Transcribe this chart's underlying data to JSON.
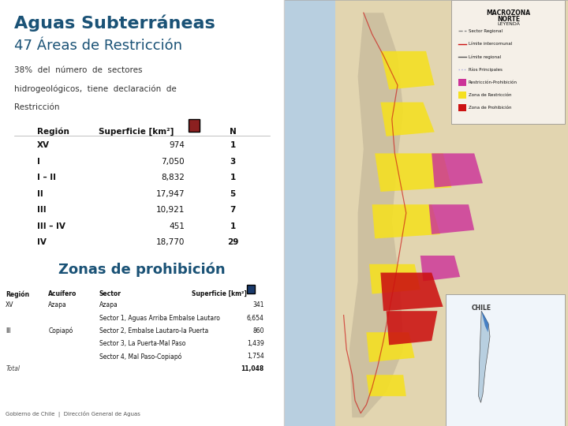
{
  "title_line1": "Aguas Subterráneas",
  "title_line2": "47 Áreas de Restricción",
  "title_color": "#1a5276",
  "subtitle_text": "38%  del  número  de  sectores\nhidrogeológicos,  tiene  declaración  de\nRestricción",
  "subtitle_color": "#333333",
  "table_color_box": "#8B2020",
  "table_rows": [
    [
      "XV",
      "974",
      "1"
    ],
    [
      "I",
      "7,050",
      "3"
    ],
    [
      "I – II",
      "8,832",
      "1"
    ],
    [
      "II",
      "17,947",
      "5"
    ],
    [
      "III",
      "10,921",
      "7"
    ],
    [
      "III – IV",
      "451",
      "1"
    ],
    [
      "IV",
      "18,770",
      "29"
    ]
  ],
  "section2_title": "Zonas de prohibición",
  "section2_color": "#1a5276",
  "prohibicion_color_box": "#1a3a6b",
  "prohibicion_rows": [
    [
      "XV",
      "Azapa",
      "Azapa",
      "341"
    ],
    [
      "",
      "",
      "Sector 1, Aguas Arriba Embalse Lautaro",
      "6,654"
    ],
    [
      "III",
      "Copiapó",
      "Sector 2, Embalse Lautaro-la Puerta",
      "860"
    ],
    [
      "",
      "",
      "Sector 3, La Puerta-Mal Paso",
      "1,439"
    ],
    [
      "",
      "",
      "Sector 4, Mal Paso-Copiapó",
      "1,754"
    ]
  ],
  "total_label": "Total",
  "total_value": "11,048",
  "footer": "Gobierno de Chile  |  Dirección General de Aguas",
  "bg_color": "#ffffff"
}
